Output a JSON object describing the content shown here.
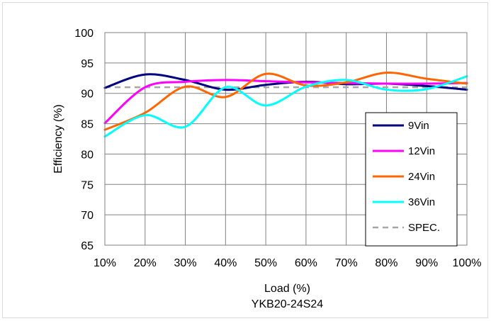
{
  "chart_data": {
    "type": "line",
    "xlabel": "Load (%)",
    "subtitle": "YKB20-24S24",
    "ylabel": "Efficiency (%)",
    "x": [
      10,
      20,
      30,
      40,
      50,
      60,
      70,
      80,
      90,
      100
    ],
    "x_tick_labels": [
      "10%",
      "20%",
      "30%",
      "40%",
      "50%",
      "60%",
      "70%",
      "80%",
      "90%",
      "100%"
    ],
    "y_ticks": [
      65,
      70,
      75,
      80,
      85,
      90,
      95,
      100
    ],
    "xlim": [
      10,
      100
    ],
    "ylim": [
      65,
      100
    ],
    "grid": true,
    "legend_position": "right",
    "series": [
      {
        "name": "9Vin",
        "color": "#00007F",
        "dash": false,
        "values": [
          90.9,
          93.1,
          92.2,
          90.6,
          91.4,
          91.9,
          91.5,
          91.6,
          91.2,
          90.6
        ]
      },
      {
        "name": "12Vin",
        "color": "#FF00FF",
        "dash": false,
        "values": [
          85.1,
          91.0,
          91.9,
          92.2,
          92.0,
          91.8,
          91.7,
          91.6,
          91.6,
          91.7
        ]
      },
      {
        "name": "24Vin",
        "color": "#FF6600",
        "dash": false,
        "values": [
          84.0,
          86.8,
          91.1,
          89.4,
          93.2,
          91.3,
          91.8,
          93.4,
          92.4,
          91.6
        ]
      },
      {
        "name": "36Vin",
        "color": "#00FFFF",
        "dash": false,
        "values": [
          82.9,
          86.4,
          84.5,
          91.0,
          88.0,
          91.1,
          92.2,
          90.6,
          90.7,
          92.8
        ]
      },
      {
        "name": "SPEC.",
        "color": "#A6A6A6",
        "dash": true,
        "values": [
          91.0,
          91.0,
          91.0,
          91.0,
          91.0,
          91.0,
          91.0,
          91.0,
          91.0,
          91.0
        ]
      }
    ]
  }
}
